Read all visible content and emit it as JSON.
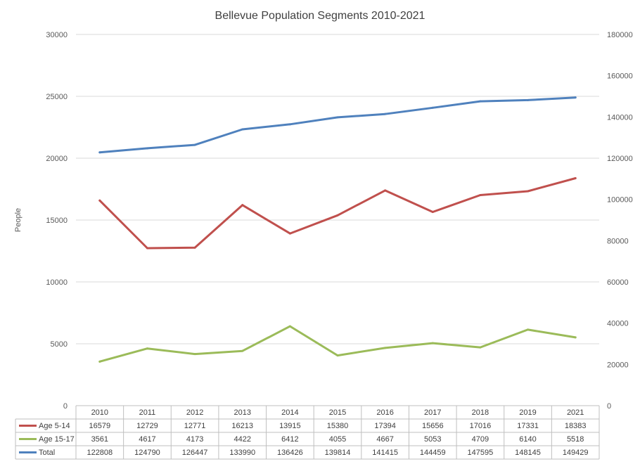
{
  "chart_data": {
    "type": "line",
    "title": "Bellevue Population Segments 2010-2021",
    "ylabel": "People",
    "ylim": [
      0,
      30000
    ],
    "ylim_secondary": [
      0,
      180000
    ],
    "yticks": [
      "0",
      "5000",
      "10000",
      "15000",
      "20000",
      "25000",
      "30000"
    ],
    "yticks_secondary": [
      "0",
      "20000",
      "40000",
      "60000",
      "80000",
      "100000",
      "120000",
      "140000",
      "160000",
      "180000"
    ],
    "categories": [
      "2010",
      "2011",
      "2012",
      "2013",
      "2014",
      "2015",
      "2016",
      "2017",
      "2018",
      "2019",
      "2021"
    ],
    "grid": true,
    "legend": "data-table",
    "series": [
      {
        "name": "Age 5-14",
        "axis": "primary",
        "color": "#c0504d",
        "values": [
          16579,
          12729,
          12771,
          16213,
          13915,
          15380,
          17394,
          15656,
          17016,
          17331,
          18383
        ]
      },
      {
        "name": "Age 15-17",
        "axis": "primary",
        "color": "#9bbb59",
        "values": [
          3561,
          4617,
          4173,
          4422,
          6412,
          4055,
          4667,
          5053,
          4709,
          6140,
          5518
        ]
      },
      {
        "name": "Total",
        "axis": "secondary",
        "color": "#4f81bd",
        "values": [
          122808,
          124790,
          126447,
          133990,
          136426,
          139814,
          141415,
          144459,
          147595,
          148145,
          149429
        ]
      }
    ]
  }
}
